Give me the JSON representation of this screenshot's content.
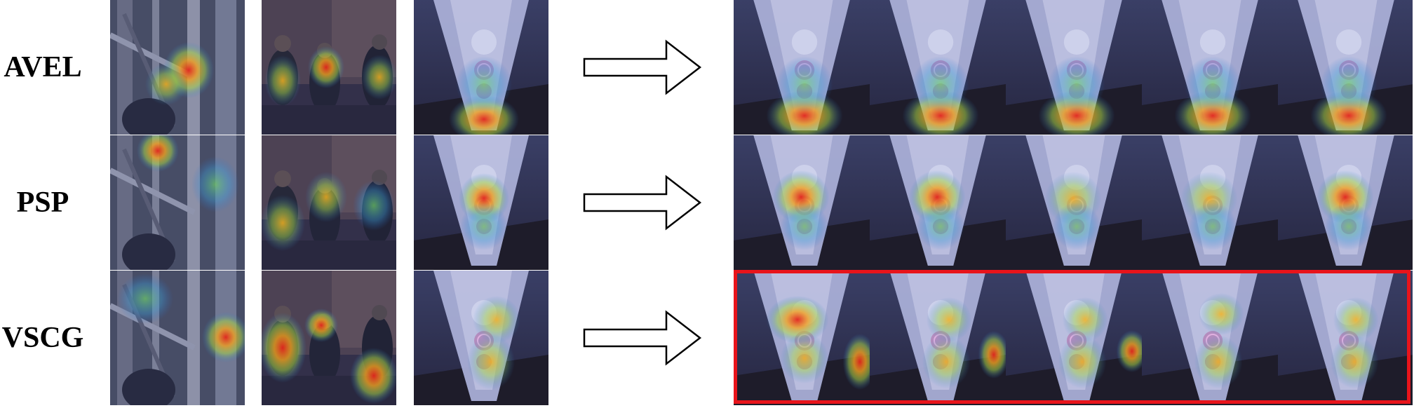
{
  "rows": [
    {
      "label": "AVEL"
    },
    {
      "label": "PSP"
    },
    {
      "label": "VSCG"
    }
  ],
  "colors": {
    "highlight": "#e8141b",
    "arrow_stroke": "#000000",
    "arrow_fill": "#ffffff",
    "scene_dark": "#2c2a3c",
    "cup": "#a9aed6"
  },
  "frames_per_strip": 5,
  "highlighted_row": "VSCG"
}
